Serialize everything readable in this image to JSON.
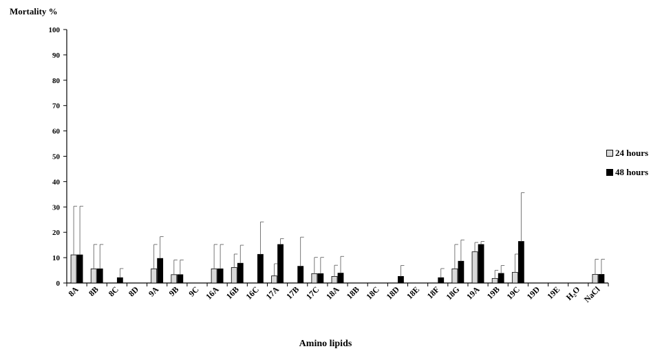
{
  "chart_data": {
    "type": "bar",
    "ylabel": "Mortality %",
    "xlabel": "Amino lipids",
    "ylim": [
      0,
      100
    ],
    "yticks": [
      0,
      10,
      20,
      30,
      40,
      50,
      60,
      70,
      80,
      90,
      100
    ],
    "categories": [
      "8A",
      "8B",
      "8C",
      "8D",
      "9A",
      "9B",
      "9C",
      "16A",
      "16B",
      "16C",
      "17A",
      "17B",
      "17C",
      "18A",
      "18B",
      "18C",
      "18D",
      "18E",
      "18F",
      "18G",
      "19A",
      "19B",
      "19C",
      "19D",
      "19E",
      "H₂O",
      "NaCl"
    ],
    "series": [
      {
        "name": "24 hours",
        "color": "#d9d9d9",
        "values": [
          11.1,
          5.6,
          0,
          0,
          5.6,
          3.3,
          0,
          5.6,
          6.1,
          0,
          2.8,
          0,
          3.7,
          2.6,
          0,
          0,
          0,
          0,
          0,
          5.6,
          12.3,
          1.8,
          4.2,
          0,
          0,
          0,
          3.4
        ],
        "errors": [
          19.2,
          9.6,
          0,
          0,
          9.6,
          5.8,
          0,
          9.6,
          5.3,
          0,
          4.8,
          0,
          6.4,
          4.4,
          0,
          0,
          0,
          0,
          0,
          9.6,
          3.7,
          3.2,
          7.2,
          0,
          0,
          0,
          6.0
        ]
      },
      {
        "name": "48 hours",
        "color": "#000000",
        "values": [
          11.1,
          5.6,
          2.1,
          0,
          9.7,
          3.3,
          0,
          5.6,
          7.8,
          11.3,
          15.2,
          6.6,
          3.7,
          3.9,
          0,
          0,
          2.6,
          0,
          2.1,
          8.6,
          15.2,
          3.8,
          16.4,
          0,
          0,
          0,
          3.4
        ],
        "errors": [
          19.2,
          9.6,
          3.6,
          0,
          8.6,
          5.8,
          0,
          9.6,
          7.1,
          12.8,
          2.3,
          11.5,
          6.4,
          6.6,
          0,
          0,
          4.3,
          0,
          3.6,
          8.4,
          1.2,
          3.1,
          19.2,
          0,
          0,
          0,
          6.0
        ]
      }
    ],
    "grid": false,
    "legend_position": "right"
  }
}
